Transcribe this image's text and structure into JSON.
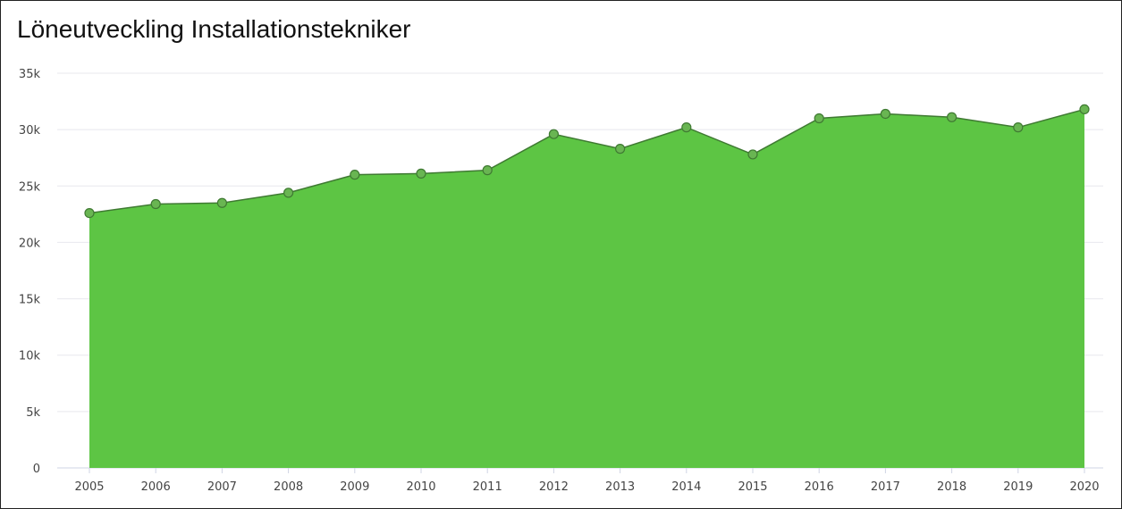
{
  "chart_data": {
    "type": "area",
    "title": "Löneutveckling Installationstekniker",
    "xlabel": "",
    "ylabel": "",
    "x": [
      "2005",
      "2006",
      "2007",
      "2008",
      "2009",
      "2010",
      "2011",
      "2012",
      "2013",
      "2014",
      "2015",
      "2016",
      "2017",
      "2018",
      "2019",
      "2020"
    ],
    "values": [
      22600,
      23400,
      23500,
      24400,
      26000,
      26100,
      26400,
      29600,
      28300,
      30200,
      27800,
      31000,
      31400,
      31100,
      30200,
      31800
    ],
    "ylim": [
      0,
      35000
    ],
    "yticks": [
      0,
      5000,
      10000,
      15000,
      20000,
      25000,
      30000,
      35000
    ],
    "ytick_labels": [
      "0",
      "5k",
      "10k",
      "15k",
      "20k",
      "25k",
      "30k",
      "35k"
    ],
    "grid": true,
    "legend": "none",
    "colors": {
      "fill": "#5dc544",
      "line": "#3f7a32",
      "marker": "#69b552",
      "grid": "#e8e8ee",
      "axis": "#cfd4e4"
    }
  }
}
